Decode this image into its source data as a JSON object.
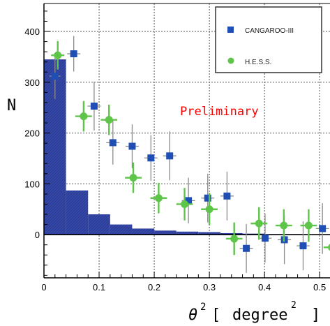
{
  "chart_data": {
    "type": "scatter",
    "ylabel": "N",
    "xlabel": {
      "base": "θ",
      "sup": "2",
      "open": "[",
      "unit": "degree",
      "unit_sup": "2",
      "close": "]"
    },
    "annotation": "Preliminary",
    "xlim": [
      0,
      0.52
    ],
    "ylim": [
      -85,
      455
    ],
    "x_ticks": [
      {
        "value": 0,
        "label": "0"
      },
      {
        "value": 0.1,
        "label": "0.1"
      },
      {
        "value": 0.2,
        "label": "0.2"
      },
      {
        "value": 0.3,
        "label": "0.3"
      },
      {
        "value": 0.4,
        "label": "0.4"
      },
      {
        "value": 0.5,
        "label": "0.5"
      }
    ],
    "y_ticks": [
      {
        "value": 0,
        "label": "0"
      },
      {
        "value": 100,
        "label": "100"
      },
      {
        "value": 200,
        "label": "200"
      },
      {
        "value": 300,
        "label": "300"
      },
      {
        "value": 400,
        "label": "400"
      }
    ],
    "grid": true,
    "legend_position": "top-right",
    "histogram": {
      "color": "#3548a8",
      "bins": [
        {
          "x0": 0.0,
          "x1": 0.04,
          "y": 345
        },
        {
          "x0": 0.04,
          "x1": 0.08,
          "y": 87
        },
        {
          "x0": 0.08,
          "x1": 0.12,
          "y": 40
        },
        {
          "x0": 0.12,
          "x1": 0.16,
          "y": 20
        },
        {
          "x0": 0.16,
          "x1": 0.2,
          "y": 12
        },
        {
          "x0": 0.2,
          "x1": 0.24,
          "y": 8
        },
        {
          "x0": 0.24,
          "x1": 0.28,
          "y": 6
        },
        {
          "x0": 0.28,
          "x1": 0.32,
          "y": 5
        },
        {
          "x0": 0.32,
          "x1": 0.36,
          "y": 3
        },
        {
          "x0": 0.36,
          "x1": 0.4,
          "y": 2
        },
        {
          "x0": 0.4,
          "x1": 0.44,
          "y": 1
        },
        {
          "x0": 0.44,
          "x1": 0.48,
          "y": 1
        },
        {
          "x0": 0.48,
          "x1": 0.52,
          "y": 0
        }
      ]
    },
    "series": [
      {
        "name": "CANGAROO-III",
        "marker": "square",
        "color": "#1f4fb5",
        "points": [
          {
            "x": 0.02,
            "y": 312,
            "xerr": 0.01,
            "yerr": 45
          },
          {
            "x": 0.054,
            "y": 356,
            "xerr": 0.012,
            "yerr": 35
          },
          {
            "x": 0.091,
            "y": 253,
            "xerr": 0.012,
            "yerr": 48
          },
          {
            "x": 0.125,
            "y": 181,
            "xerr": 0.012,
            "yerr": 43
          },
          {
            "x": 0.16,
            "y": 174,
            "xerr": 0.012,
            "yerr": 43
          },
          {
            "x": 0.194,
            "y": 151,
            "xerr": 0.012,
            "yerr": 45
          },
          {
            "x": 0.228,
            "y": 155,
            "xerr": 0.012,
            "yerr": 48
          },
          {
            "x": 0.262,
            "y": 67,
            "xerr": 0.012,
            "yerr": 45
          },
          {
            "x": 0.297,
            "y": 72,
            "xerr": 0.012,
            "yerr": 48
          },
          {
            "x": 0.332,
            "y": 76,
            "xerr": 0.012,
            "yerr": 48
          },
          {
            "x": 0.367,
            "y": -27,
            "xerr": 0.012,
            "yerr": 48
          },
          {
            "x": 0.401,
            "y": -7,
            "xerr": 0.012,
            "yerr": 48
          },
          {
            "x": 0.436,
            "y": -10,
            "xerr": 0.012,
            "yerr": 48
          },
          {
            "x": 0.47,
            "y": -22,
            "xerr": 0.012,
            "yerr": 48
          },
          {
            "x": 0.505,
            "y": 12,
            "xerr": 0.012,
            "yerr": 50
          }
        ]
      },
      {
        "name": "H.E.S.S.",
        "marker": "circle",
        "color": "#5ec44a",
        "points": [
          {
            "x": 0.025,
            "y": 353,
            "xerr": 0.012,
            "yerr": 28
          },
          {
            "x": 0.072,
            "y": 233,
            "xerr": 0.015,
            "yerr": 30
          },
          {
            "x": 0.118,
            "y": 226,
            "xerr": 0.015,
            "yerr": 30
          },
          {
            "x": 0.162,
            "y": 112,
            "xerr": 0.015,
            "yerr": 30
          },
          {
            "x": 0.208,
            "y": 72,
            "xerr": 0.015,
            "yerr": 30
          },
          {
            "x": 0.255,
            "y": 60,
            "xerr": 0.015,
            "yerr": 32
          },
          {
            "x": 0.3,
            "y": 50,
            "xerr": 0.015,
            "yerr": 32
          },
          {
            "x": 0.345,
            "y": -8,
            "xerr": 0.015,
            "yerr": 32
          },
          {
            "x": 0.39,
            "y": 22,
            "xerr": 0.015,
            "yerr": 32
          },
          {
            "x": 0.435,
            "y": 18,
            "xerr": 0.015,
            "yerr": 32
          },
          {
            "x": 0.48,
            "y": 18,
            "xerr": 0.015,
            "yerr": 32
          },
          {
            "x": 0.522,
            "y": -25,
            "xerr": 0.015,
            "yerr": 32
          }
        ]
      }
    ]
  },
  "colors": {
    "grid": "#555555",
    "axis": "#000000",
    "error_bar": "#8a8a8a",
    "zero_line": "#000000"
  }
}
